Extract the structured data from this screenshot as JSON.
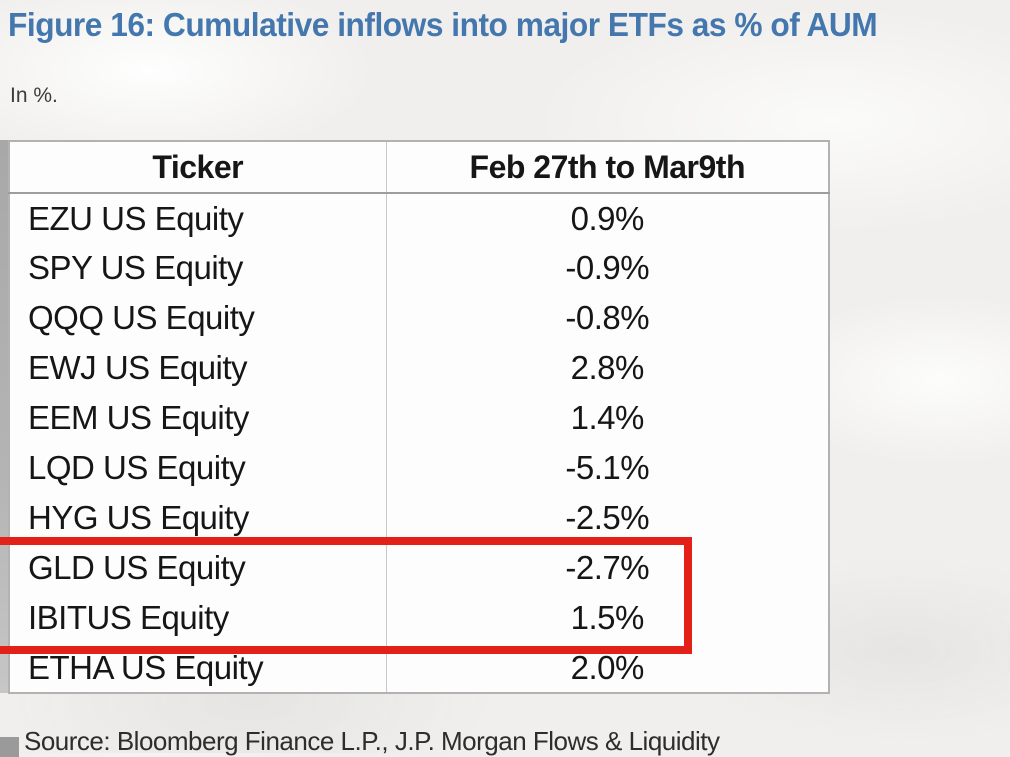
{
  "figure": {
    "title": "Figure 16: Cumulative inflows into major ETFs as % of AUM",
    "subtitle": "In %.",
    "source": "Source: Bloomberg Finance L.P., J.P. Morgan Flows & Liquidity"
  },
  "table": {
    "columns": [
      "Ticker",
      "Feb 27th to Mar9th"
    ],
    "rows": [
      {
        "ticker": "EZU US Equity",
        "value": "0.9%"
      },
      {
        "ticker": "SPY US Equity",
        "value": "-0.9%"
      },
      {
        "ticker": "QQQ US Equity",
        "value": "-0.8%"
      },
      {
        "ticker": "EWJ US Equity",
        "value": "2.8%"
      },
      {
        "ticker": "EEM US Equity",
        "value": "1.4%"
      },
      {
        "ticker": "LQD US Equity",
        "value": "-5.1%"
      },
      {
        "ticker": "HYG US Equity",
        "value": "-2.5%"
      },
      {
        "ticker": "GLD US Equity",
        "value": "-2.7%"
      },
      {
        "ticker": "IBITUS Equity",
        "value": "1.5%"
      },
      {
        "ticker": "ETHA US Equity",
        "value": "2.0%"
      }
    ],
    "highlight": {
      "tickers": [
        "GLD US Equity",
        "IBITUS Equity"
      ],
      "color": "#e32119"
    }
  },
  "colors": {
    "title_blue": "#4377ad",
    "highlight_red": "#e32119",
    "table_border": "#b2b2b2",
    "text_dark": "#161616"
  },
  "chart_data": {
    "type": "table",
    "title": "Figure 16: Cumulative inflows into major ETFs as % of AUM",
    "unit": "%",
    "columns": [
      "Ticker",
      "Feb 27th to Mar9th"
    ],
    "categories": [
      "EZU US Equity",
      "SPY US Equity",
      "QQQ US Equity",
      "EWJ US Equity",
      "EEM US Equity",
      "LQD US Equity",
      "HYG US Equity",
      "GLD US Equity",
      "IBITUS Equity",
      "ETHA US Equity"
    ],
    "values": [
      0.9,
      -0.9,
      -0.8,
      2.8,
      1.4,
      -5.1,
      -2.5,
      -2.7,
      1.5,
      2.0
    ],
    "highlighted_rows": [
      "GLD US Equity",
      "IBITUS Equity"
    ],
    "source": "Source: Bloomberg Finance L.P., J.P. Morgan Flows & Liquidity"
  }
}
